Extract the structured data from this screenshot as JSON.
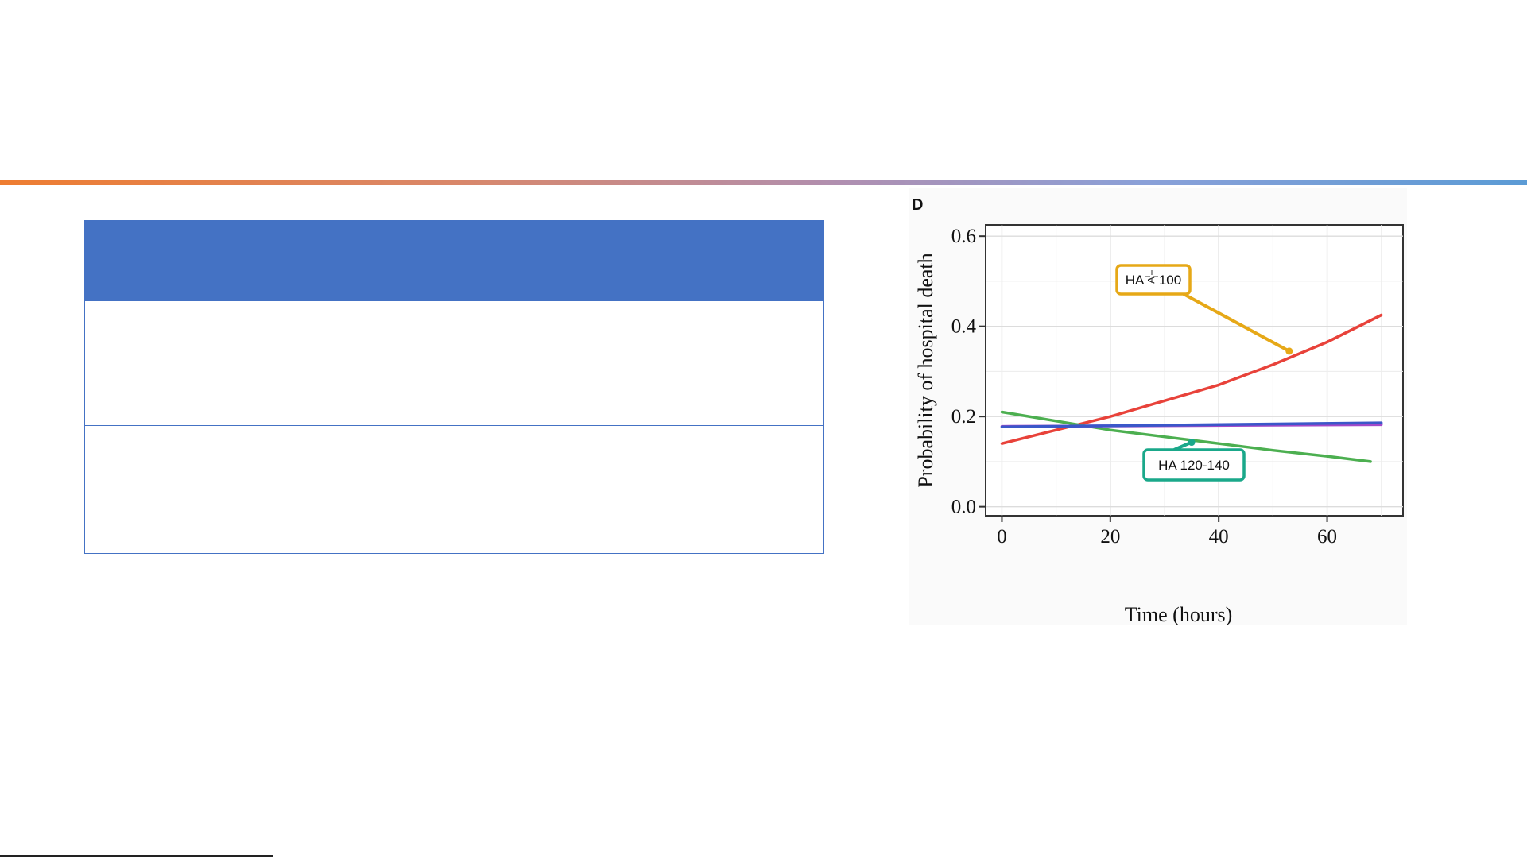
{
  "chart_data": {
    "type": "line",
    "panel_label": "D",
    "xlabel": "Time (hours)",
    "ylabel": "Probability of hospital death",
    "xlim": [
      -3,
      74
    ],
    "ylim": [
      -0.02,
      0.625
    ],
    "x_ticks": [
      0,
      20,
      40,
      60
    ],
    "x_tick_labels": [
      "0",
      "20",
      "40",
      "60"
    ],
    "y_ticks": [
      0.0,
      0.2,
      0.4,
      0.6
    ],
    "y_tick_labels": [
      "0.0",
      "0.2",
      "0.4",
      "0.6"
    ],
    "grid": true,
    "series": [
      {
        "color": "#e8423a",
        "x": [
          0,
          10,
          20,
          30,
          40,
          50,
          60,
          70
        ],
        "y": [
          0.14,
          0.17,
          0.2,
          0.235,
          0.27,
          0.315,
          0.365,
          0.425
        ]
      },
      {
        "color": "#4caf50",
        "x": [
          0,
          10,
          20,
          30,
          40,
          50,
          60,
          68
        ],
        "y": [
          0.21,
          0.19,
          0.17,
          0.155,
          0.14,
          0.125,
          0.112,
          0.1
        ]
      },
      {
        "color": "#a349c9",
        "x": [
          0,
          70
        ],
        "y": [
          0.178,
          0.182
        ]
      },
      {
        "color": "#3b57c9",
        "x": [
          0,
          70
        ],
        "y": [
          0.177,
          0.186
        ]
      }
    ],
    "annotations": [
      {
        "text": "HA < 100",
        "point": [
          53,
          0.345
        ],
        "border_color": "#e6a817"
      },
      {
        "text": "HA 120-140",
        "point": [
          35,
          0.143
        ],
        "border_color": "#1aa88a"
      }
    ]
  }
}
